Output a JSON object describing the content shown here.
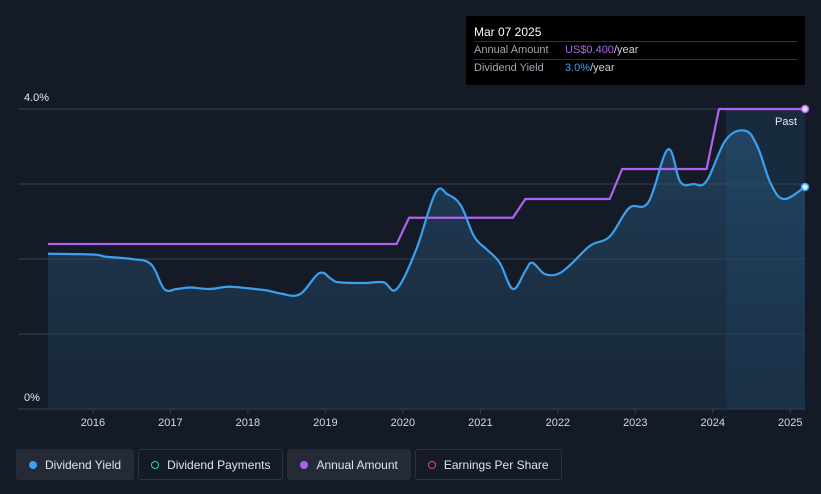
{
  "tooltip": {
    "date": "Mar 07 2025",
    "amount_label": "Annual Amount",
    "amount_value": "US$0.400",
    "amount_unit": "/year",
    "yield_label": "Dividend Yield",
    "yield_value": "3.0%",
    "yield_unit": "/year"
  },
  "past_label": "Past",
  "legend": [
    {
      "label": "Dividend Yield",
      "color": "#3aa0f0",
      "style": "filled",
      "active": true
    },
    {
      "label": "Dividend Payments",
      "color": "#2dd4bf",
      "style": "outline",
      "active": false
    },
    {
      "label": "Annual Amount",
      "color": "#b062ee",
      "style": "filled",
      "active": true
    },
    {
      "label": "Earnings Per Share",
      "color": "#e0457b",
      "style": "outline",
      "active": false
    }
  ],
  "colors": {
    "background": "#151b26",
    "yield_line": "#3aa0f0",
    "amount_line": "#b062ee",
    "grid": "#3a414c"
  },
  "chart_data": {
    "type": "line",
    "x_ticks": [
      "2016",
      "2017",
      "2018",
      "2019",
      "2020",
      "2021",
      "2022",
      "2023",
      "2024",
      "2025"
    ],
    "y_tick_labels": [
      {
        "value": 4,
        "label": "4.0%"
      },
      {
        "value": 0,
        "label": "0%"
      }
    ],
    "ylim": [
      0,
      4
    ],
    "xlim": [
      2015.42,
      2025.19
    ],
    "grid": true,
    "legend_position": "bottom",
    "past_region_start": 2024.17,
    "series": [
      {
        "name": "Dividend Yield",
        "area": true,
        "points": [
          [
            2015.42,
            2.07
          ],
          [
            2016.0,
            2.06
          ],
          [
            2016.17,
            2.03
          ],
          [
            2016.5,
            2.0
          ],
          [
            2016.75,
            1.93
          ],
          [
            2016.92,
            1.6
          ],
          [
            2017.08,
            1.6
          ],
          [
            2017.25,
            1.62
          ],
          [
            2017.5,
            1.6
          ],
          [
            2017.75,
            1.63
          ],
          [
            2018.0,
            1.61
          ],
          [
            2018.25,
            1.58
          ],
          [
            2018.42,
            1.54
          ],
          [
            2018.67,
            1.53
          ],
          [
            2018.92,
            1.81
          ],
          [
            2019.08,
            1.73
          ],
          [
            2019.17,
            1.69
          ],
          [
            2019.5,
            1.68
          ],
          [
            2019.75,
            1.69
          ],
          [
            2019.92,
            1.6
          ],
          [
            2020.17,
            2.12
          ],
          [
            2020.42,
            2.88
          ],
          [
            2020.58,
            2.86
          ],
          [
            2020.75,
            2.71
          ],
          [
            2020.92,
            2.3
          ],
          [
            2021.08,
            2.13
          ],
          [
            2021.25,
            1.95
          ],
          [
            2021.42,
            1.6
          ],
          [
            2021.58,
            1.84
          ],
          [
            2021.67,
            1.95
          ],
          [
            2021.83,
            1.8
          ],
          [
            2022.0,
            1.8
          ],
          [
            2022.17,
            1.93
          ],
          [
            2022.42,
            2.18
          ],
          [
            2022.67,
            2.3
          ],
          [
            2022.92,
            2.68
          ],
          [
            2023.17,
            2.76
          ],
          [
            2023.42,
            3.46
          ],
          [
            2023.58,
            3.03
          ],
          [
            2023.75,
            3.0
          ],
          [
            2023.92,
            3.04
          ],
          [
            2024.17,
            3.59
          ],
          [
            2024.42,
            3.71
          ],
          [
            2024.58,
            3.49
          ],
          [
            2024.75,
            3.0
          ],
          [
            2024.92,
            2.8
          ],
          [
            2025.19,
            2.96
          ]
        ]
      },
      {
        "name": "Annual Amount",
        "area": false,
        "points": [
          [
            2015.42,
            2.2
          ],
          [
            2019.92,
            2.2
          ],
          [
            2020.08,
            2.55
          ],
          [
            2021.42,
            2.55
          ],
          [
            2021.58,
            2.8
          ],
          [
            2022.67,
            2.8
          ],
          [
            2022.83,
            3.2
          ],
          [
            2023.92,
            3.2
          ],
          [
            2024.08,
            4.0
          ],
          [
            2025.19,
            4.0
          ]
        ]
      }
    ]
  }
}
